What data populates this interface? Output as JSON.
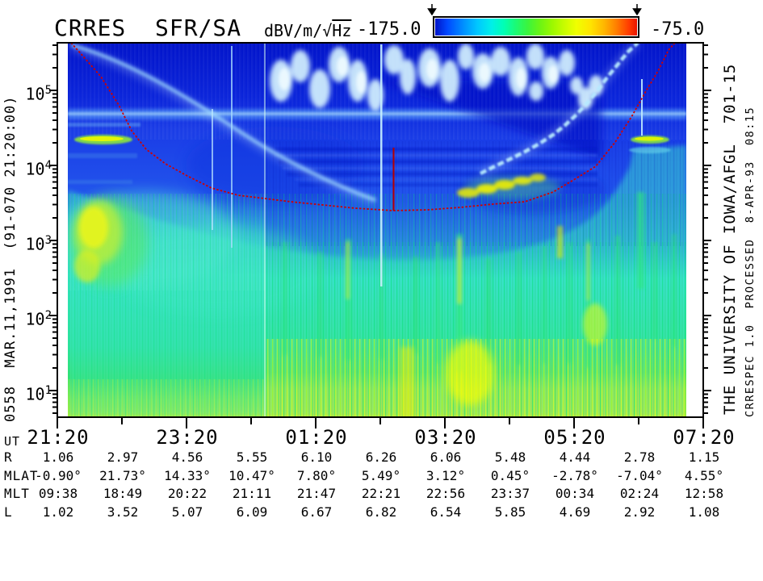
{
  "header": {
    "units_prefix": "dBV/m/",
    "units_radical": "√",
    "units_radicand": "Hz"
  },
  "side_labels": {
    "left": "0558  MAR.11,1991  (91-070 21:20:00)",
    "right_primary": "THE UNIVERSITY OF IOWA/AFGL  701-15",
    "right_secondary": "CRRESPEC 1.0  PROCESSED  8-APR-93  08:15"
  },
  "colors": {
    "background": "#ffffff",
    "frame": "#000000",
    "fce_curve_red": "#cc0000",
    "deep_blue": "#0113ca",
    "cyan": "#38e0cb",
    "green": "#35e57e",
    "yellow": "#f2f203",
    "colorbar_palette": [
      "#0014c8",
      "#0090ff",
      "#00f0e8",
      "#3cf43c",
      "#c8fc00",
      "#ffe400",
      "#ff7c00",
      "#e81400"
    ]
  },
  "chart_data": {
    "type": "heatmap",
    "subtype": "frequency-time radio spectrogram",
    "title": "CRRES  SFR/SA",
    "units": "dBV/m/√Hz",
    "colorbar": {
      "min": -175.0,
      "max": -75.0,
      "min_label": "-175.0",
      "max_label": "-75.0",
      "orientation": "horizontal",
      "palette_order": "blue-cyan-green-yellow-orange-red"
    },
    "x_axis": {
      "label": "UT",
      "tick_labels": [
        "21:20",
        "23:20",
        "01:20",
        "03:20",
        "05:20",
        "07:20"
      ],
      "tick_spacing_hours": 2,
      "minor_tick_hours": 1,
      "span_hours": 10
    },
    "y_axis": {
      "quantity": "frequency",
      "unit": "Hz",
      "scale": "log",
      "tick_base": "10",
      "tick_exponents": [
        "5",
        "4",
        "3",
        "2",
        "1"
      ],
      "approx_range_hz": [
        5,
        400000
      ]
    },
    "orbit_info": "0558  MAR.11,1991  (91-070 21:20:00)",
    "ephemeris": {
      "rows": [
        {
          "label": "R",
          "values": [
            "1.06",
            "2.97",
            "4.56",
            "5.55",
            "6.10",
            "6.26",
            "6.06",
            "5.48",
            "4.44",
            "2.78",
            "1.15"
          ]
        },
        {
          "label": "MLAT",
          "values": [
            "-0.90°",
            "21.73°",
            "14.33°",
            "10.47°",
            "7.80°",
            "5.49°",
            "3.12°",
            "0.45°",
            "-2.78°",
            "-7.04°",
            "4.55°"
          ]
        },
        {
          "label": "MLT",
          "values": [
            "09:38",
            "18:49",
            "20:22",
            "21:11",
            "21:47",
            "22:21",
            "22:56",
            "23:37",
            "00:34",
            "02:24",
            "12:58"
          ]
        },
        {
          "label": "L",
          "values": [
            "1.02",
            "3.52",
            "5.07",
            "6.09",
            "6.67",
            "6.82",
            "6.54",
            "5.85",
            "4.69",
            "2.92",
            "1.08"
          ]
        }
      ]
    },
    "features": [
      "red dotted electron-cyclotron-frequency curve, U-shaped, minimum near 3 kHz around 02:00-02:40 UT, rising to the 400 kHz top of the plot at both orbit ends",
      "short vertical dark-red marker near 02:30 UT extending from ~10 kHz down to the fce curve",
      "bright patchy white-cyan emissions between ~30 and ~300 kHz from about 00:20 to 04:40 UT",
      "narrow horizontal enhancement across the whole pass near 30 kHz",
      "upper-hybrid-like cyan trace descending from 400 kHz at 21:25 toward ~4 kHz near apogee and climbing back to 400 kHz by ~06:50 UT",
      "intense yellow-green narrowband emission near 15-20 kHz at ~21:40 and ~06:00 UT (plasmapause crossings)",
      "broadband cyan-green emission with vertical striations below ~1 kHz, brightening to yellow at the lowest frequencies",
      "yellow chorus-like blob 100-600 Hz near 21:40-22:20 UT",
      "data-segment boundary near 00:30 UT after which low-frequency noise is distinctly yellower"
    ]
  }
}
